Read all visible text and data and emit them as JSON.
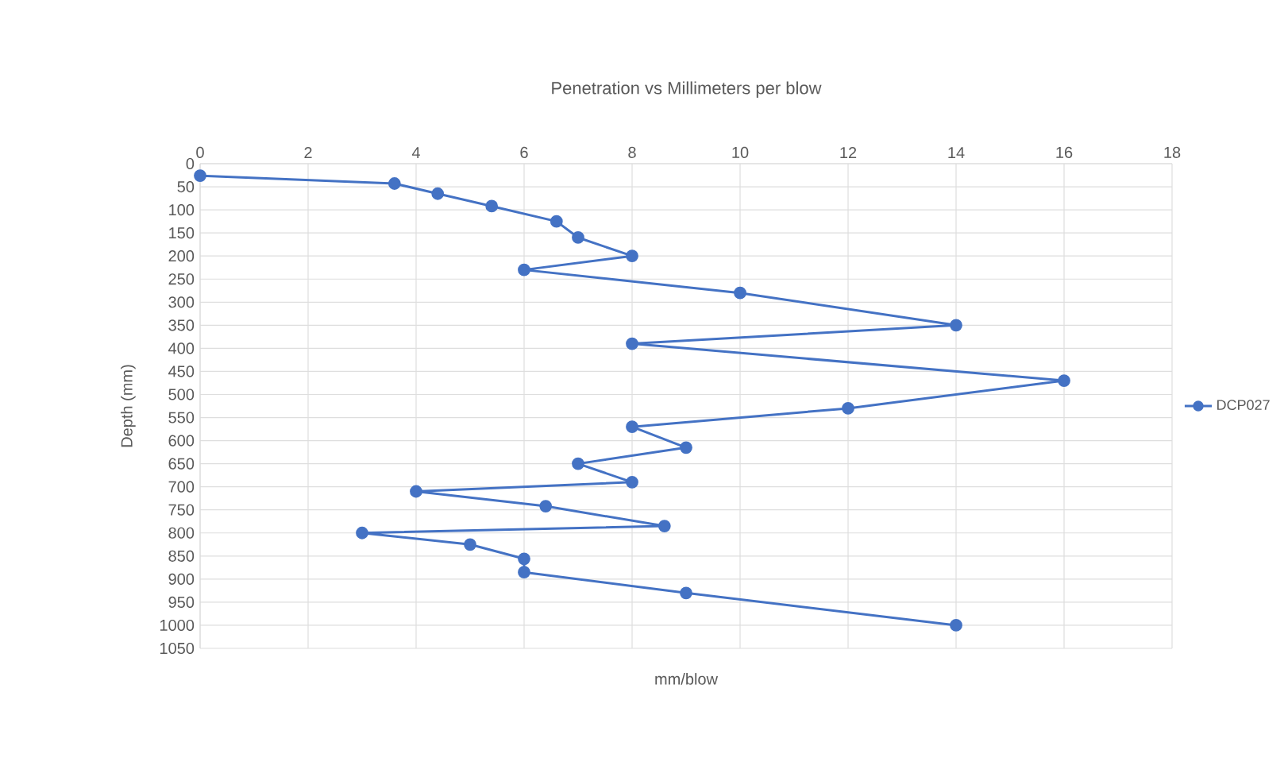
{
  "chart_data": {
    "type": "line",
    "title": "Penetration vs Millimeters per blow",
    "xlabel": "mm/blow",
    "ylabel": "Depth (mm)",
    "x": [
      0,
      3.6,
      4.4,
      5.4,
      6.6,
      7,
      8,
      6,
      10,
      14,
      8,
      16,
      12,
      8,
      9,
      7,
      8,
      4,
      6.4,
      8.6,
      3,
      5,
      6,
      6,
      9,
      14
    ],
    "series": [
      {
        "name": "DCP027",
        "color": "#4472c4",
        "values": [
          26,
          43,
          65,
          92,
          125,
          160,
          200,
          230,
          280,
          350,
          390,
          470,
          530,
          570,
          615,
          650,
          690,
          710,
          742,
          785,
          800,
          825,
          856,
          885,
          930,
          1000
        ]
      }
    ],
    "xlim": [
      0,
      18
    ],
    "ylim": [
      1050,
      0
    ],
    "xticks": [
      0,
      2,
      4,
      6,
      8,
      10,
      12,
      14,
      16,
      18
    ],
    "yticks": [
      0,
      50,
      100,
      150,
      200,
      250,
      300,
      350,
      400,
      450,
      500,
      550,
      600,
      650,
      700,
      750,
      800,
      850,
      900,
      950,
      1000,
      1050
    ],
    "grid": true,
    "legend": "right",
    "marker": "circle"
  }
}
